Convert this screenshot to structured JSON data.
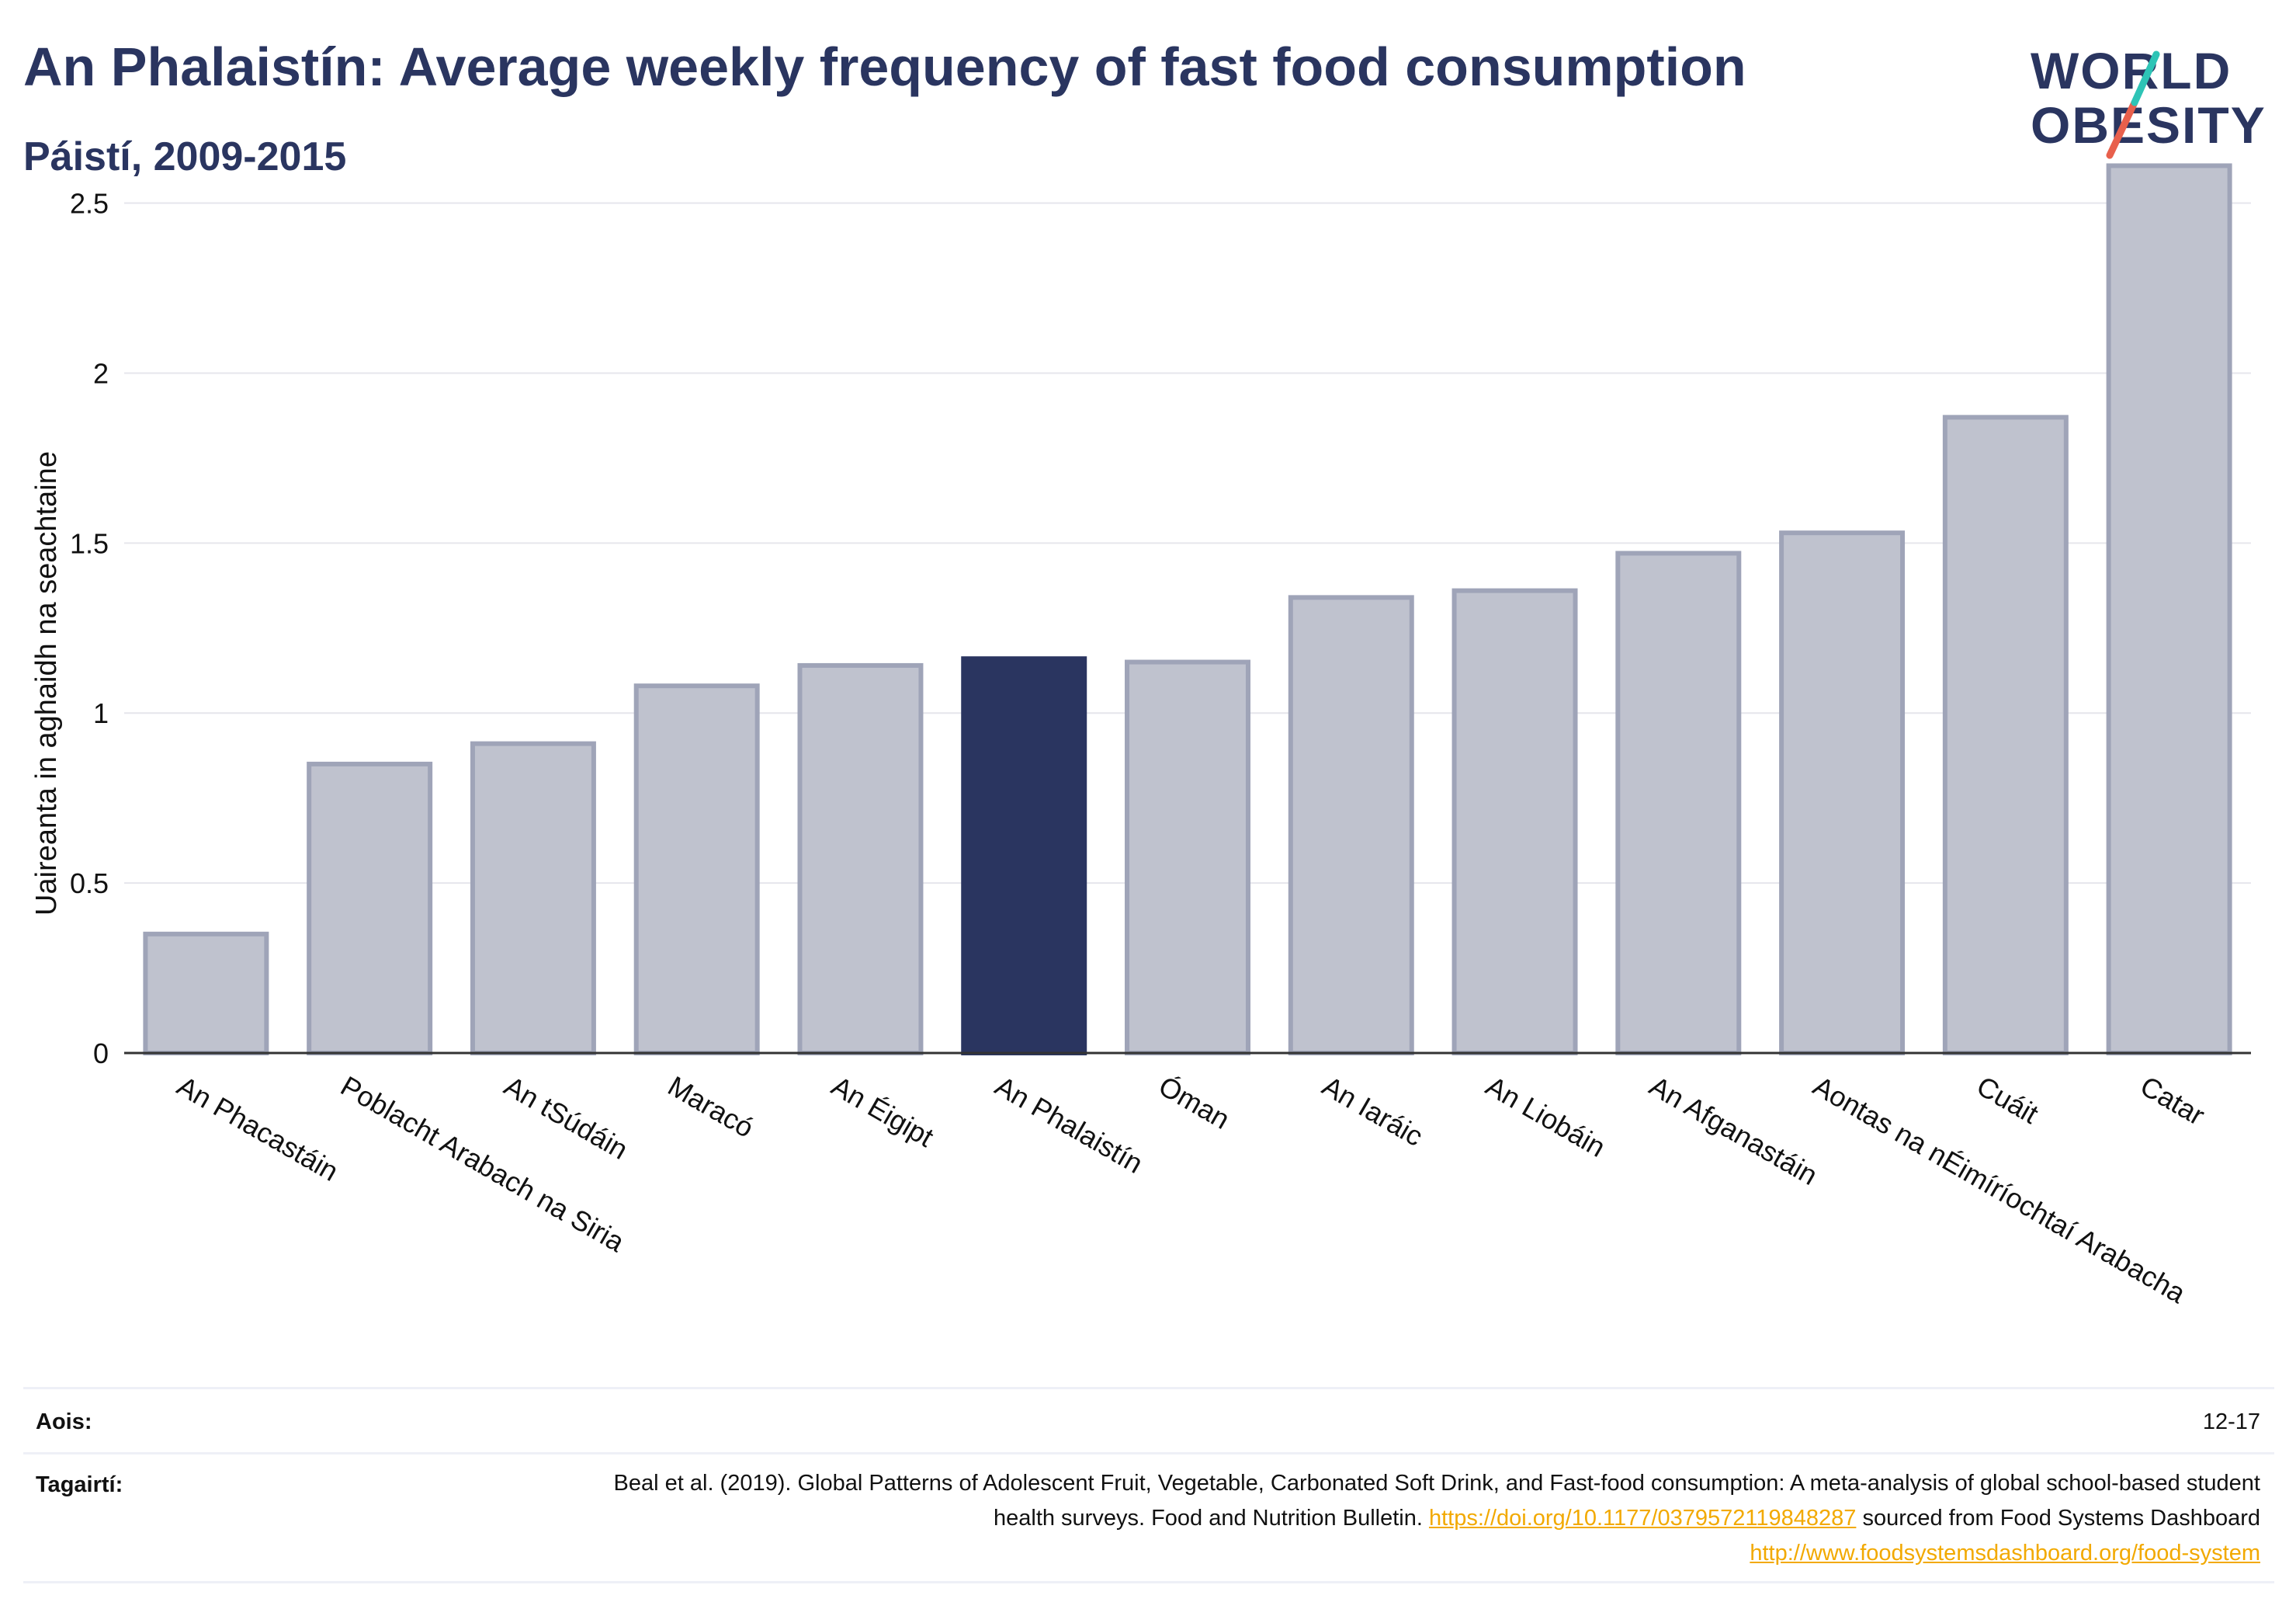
{
  "header": {
    "title": "An Phalaistín: Average weekly frequency of fast food consumption",
    "subtitle": "Páistí, 2009-2015"
  },
  "logo": {
    "line1": "WORLD",
    "line2": "OBESITY",
    "accent_colors": [
      "#2ec4b6",
      "#e8604c"
    ]
  },
  "chart_data": {
    "type": "bar",
    "ylabel": "Uaireanta in aghaidh na seachtaine",
    "xlabel": "",
    "ylim": [
      0,
      2.7
    ],
    "yticks": [
      0,
      0.5,
      1,
      1.5,
      2,
      2.5
    ],
    "ytick_labels": [
      "0",
      "0.5",
      "1",
      "1.5",
      "2",
      "2.5"
    ],
    "categories": [
      "An Phacastáin",
      "Poblacht Arabach na Siria",
      "An tSúdáin",
      "Maracó",
      "An Éigipt",
      "An Phalaistín",
      "Óman",
      "An Iaráic",
      "An Liobáin",
      "An Afganastáin",
      "Aontas na nÉimíríochtaí Arabacha",
      "Cuáit",
      "Catar"
    ],
    "values": [
      0.35,
      0.85,
      0.91,
      1.08,
      1.14,
      1.16,
      1.15,
      1.34,
      1.36,
      1.47,
      1.53,
      1.87,
      2.61
    ],
    "highlight": "An Phalaistín",
    "colors": {
      "bar": "#bfc2ce",
      "bar_border": "#9fa4b8",
      "highlight": "#2a3560",
      "grid": "#e6e6ec",
      "axis": "#333333"
    },
    "grid": true,
    "legend": "none"
  },
  "footer": {
    "age_label": "Aois:",
    "age_value": "12-17",
    "ref_label": "Tagairtí:",
    "ref_text_1": "Beal et al. (2019). Global Patterns of Adolescent Fruit, Vegetable, Carbonated Soft Drink, and Fast-food consumption: A meta-analysis of global school-based student health surveys. Food and Nutrition Bulletin.",
    "ref_link_1": "https://doi.org/10.1177/0379572119848287",
    "ref_text_2": "sourced from Food Systems Dashboard",
    "ref_link_2": "http://www.foodsystemsdashboard.org/food-system"
  }
}
